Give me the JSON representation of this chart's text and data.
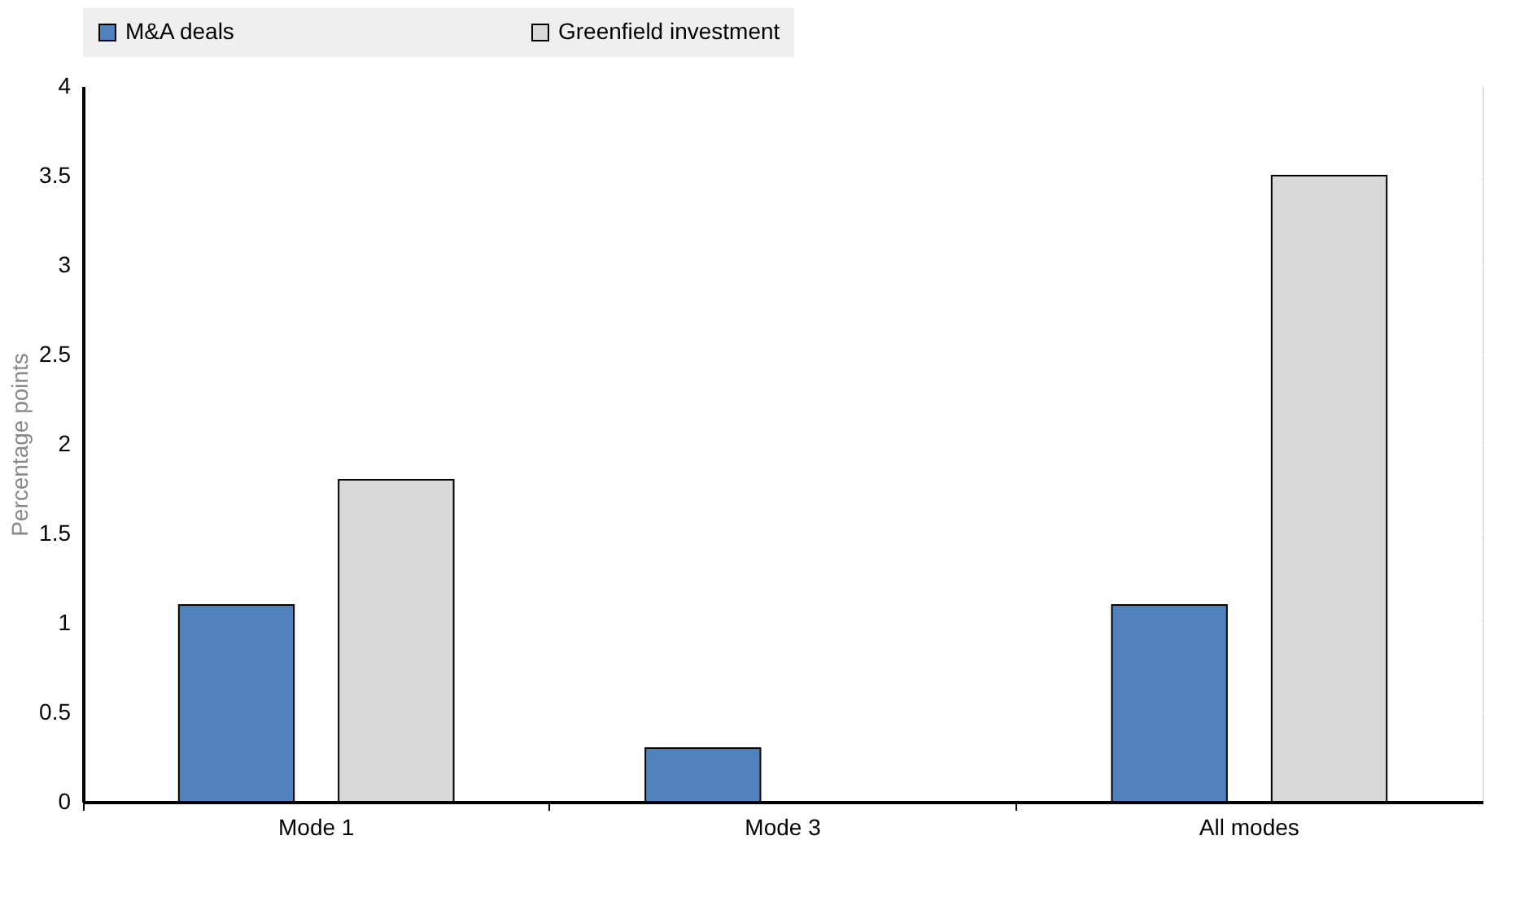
{
  "chart_data": {
    "type": "bar",
    "ylabel": "Percentage points",
    "categories": [
      "Mode 1",
      "Mode 3",
      "All modes"
    ],
    "series": [
      {
        "name": "M&A deals",
        "color": "#4f81bd",
        "values": [
          1.1,
          0.3,
          1.1
        ]
      },
      {
        "name": "Greenfield investment",
        "color": "#d9d9d9",
        "values": [
          1.8,
          null,
          3.5
        ]
      }
    ],
    "ylim": [
      0,
      4
    ],
    "yticks": [
      0,
      0.5,
      1,
      1.5,
      2,
      2.5,
      3,
      3.5,
      4
    ],
    "grid": true,
    "legend": "top"
  }
}
